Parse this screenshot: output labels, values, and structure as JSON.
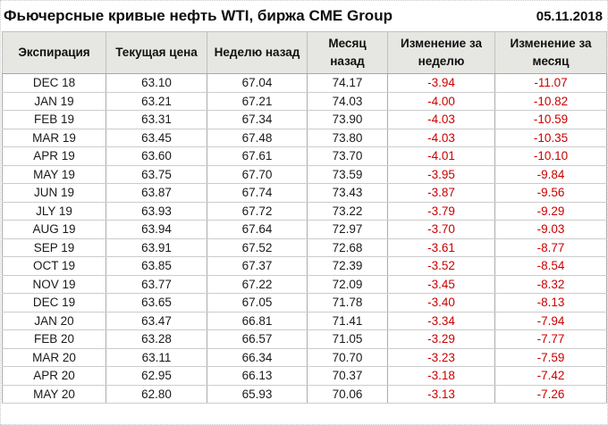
{
  "header": {
    "title": "Фьючерсные кривые нефть WTI, биржа CME Group",
    "date": "05.11.2018"
  },
  "colors": {
    "negative": "#cc0000",
    "text": "#1a1a1a",
    "header_background": "#eae9e6",
    "grid_vertical": "#ababab",
    "grid_horizontal": "#cccccc"
  },
  "chart_data": {
    "type": "table",
    "title": "Фьючерсные кривые нефть WTI, биржа CME Group",
    "date": "05.11.2018",
    "columns": [
      "Экспирация",
      "Текущая цена",
      "Неделю назад",
      "Месяц назад",
      "Изменение за неделю",
      "Изменение за месяц"
    ],
    "rows": [
      [
        "DEC 18",
        63.1,
        67.04,
        74.17,
        -3.94,
        -11.07
      ],
      [
        "JAN 19",
        63.21,
        67.21,
        74.03,
        -4.0,
        -10.82
      ],
      [
        "FEB 19",
        63.31,
        67.34,
        73.9,
        -4.03,
        -10.59
      ],
      [
        "MAR 19",
        63.45,
        67.48,
        73.8,
        -4.03,
        -10.35
      ],
      [
        "APR 19",
        63.6,
        67.61,
        73.7,
        -4.01,
        -10.1
      ],
      [
        "MAY 19",
        63.75,
        67.7,
        73.59,
        -3.95,
        -9.84
      ],
      [
        "JUN 19",
        63.87,
        67.74,
        73.43,
        -3.87,
        -9.56
      ],
      [
        "JLY 19",
        63.93,
        67.72,
        73.22,
        -3.79,
        -9.29
      ],
      [
        "AUG 19",
        63.94,
        67.64,
        72.97,
        -3.7,
        -9.03
      ],
      [
        "SEP 19",
        63.91,
        67.52,
        72.68,
        -3.61,
        -8.77
      ],
      [
        "OCT 19",
        63.85,
        67.37,
        72.39,
        -3.52,
        -8.54
      ],
      [
        "NOV 19",
        63.77,
        67.22,
        72.09,
        -3.45,
        -8.32
      ],
      [
        "DEC 19",
        63.65,
        67.05,
        71.78,
        -3.4,
        -8.13
      ],
      [
        "JAN 20",
        63.47,
        66.81,
        71.41,
        -3.34,
        -7.94
      ],
      [
        "FEB 20",
        63.28,
        66.57,
        71.05,
        -3.29,
        -7.77
      ],
      [
        "MAR 20",
        63.11,
        66.34,
        70.7,
        -3.23,
        -7.59
      ],
      [
        "APR 20",
        62.95,
        66.13,
        70.37,
        -3.18,
        -7.42
      ],
      [
        "MAY 20",
        62.8,
        65.93,
        70.06,
        -3.13,
        -7.26
      ]
    ]
  }
}
